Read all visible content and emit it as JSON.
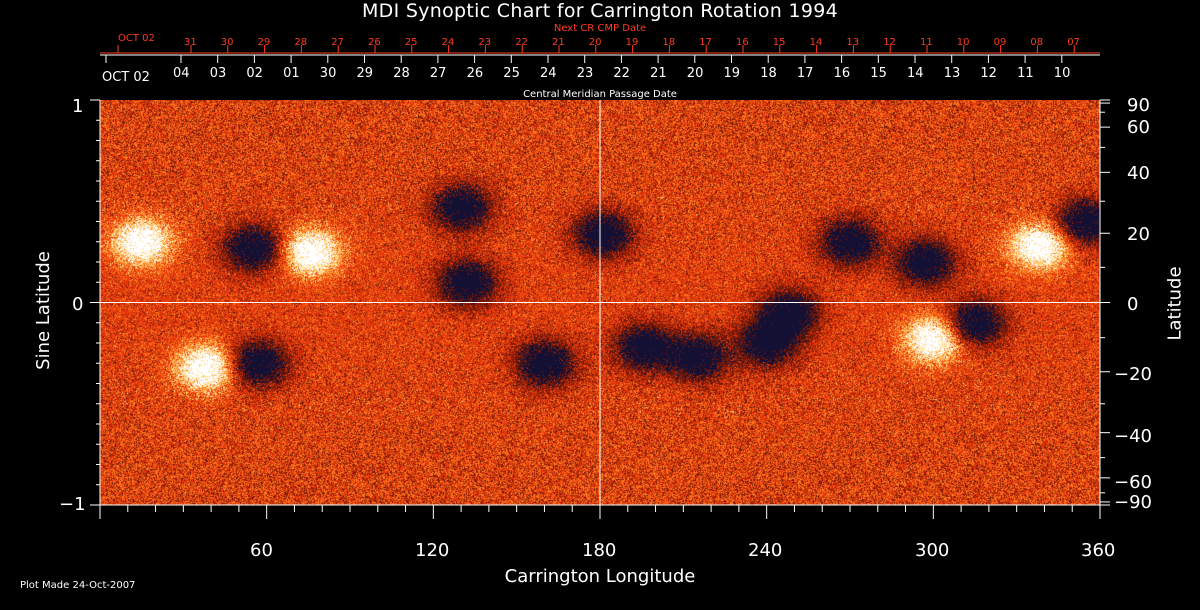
{
  "chart_data": {
    "type": "heatmap",
    "title": "MDI Synoptic Chart for Carrington Rotation 1994",
    "top_axis_red": {
      "label": "Next CR CMP Date",
      "start_label": "OCT 02",
      "ticks": [
        "31",
        "30",
        "29",
        "28",
        "27",
        "26",
        "25",
        "24",
        "23",
        "22",
        "21",
        "20",
        "19",
        "18",
        "17",
        "16",
        "15",
        "14",
        "13",
        "12",
        "11",
        "10",
        "09",
        "08",
        "07"
      ]
    },
    "top_axis_white": {
      "label": "Central Meridian Passage Date",
      "start_label": "OCT 02",
      "ticks": [
        "04",
        "03",
        "02",
        "01",
        "30",
        "29",
        "28",
        "27",
        "26",
        "25",
        "24",
        "23",
        "22",
        "21",
        "20",
        "19",
        "18",
        "17",
        "16",
        "15",
        "14",
        "13",
        "12",
        "11",
        "10"
      ]
    },
    "xlabel": "Carrington Longitude",
    "xlim": [
      0,
      360
    ],
    "xticks": [
      "60",
      "120",
      "180",
      "240",
      "300",
      "360"
    ],
    "ylabel": "Sine Latitude",
    "ylim": [
      -1,
      1
    ],
    "yticks": [
      "1",
      "0",
      "−1"
    ],
    "y2label": "Latitude",
    "y2ticks": [
      "90",
      "60",
      "40",
      "20",
      "0",
      "−20",
      "−40",
      "−60",
      "−90"
    ],
    "footer": "Plot Made 24-Oct-2007",
    "colormap": [
      "#141033",
      "#7a1a08",
      "#e2380c",
      "#ff7a1e",
      "#ffd27a",
      "#ffffff"
    ],
    "features": [
      {
        "lon": 15,
        "lat": 0.3,
        "polarity": "positive"
      },
      {
        "lon": 55,
        "lat": 0.27,
        "polarity": "negative"
      },
      {
        "lon": 76,
        "lat": 0.25,
        "polarity": "positive"
      },
      {
        "lon": 130,
        "lat": 0.47,
        "polarity": "negative"
      },
      {
        "lon": 132,
        "lat": 0.1,
        "polarity": "negative"
      },
      {
        "lon": 181,
        "lat": 0.34,
        "polarity": "negative"
      },
      {
        "lon": 38,
        "lat": -0.32,
        "polarity": "positive"
      },
      {
        "lon": 57,
        "lat": -0.3,
        "polarity": "negative"
      },
      {
        "lon": 160,
        "lat": -0.3,
        "polarity": "negative"
      },
      {
        "lon": 196,
        "lat": -0.22,
        "polarity": "negative"
      },
      {
        "lon": 215,
        "lat": -0.27,
        "polarity": "negative"
      },
      {
        "lon": 240,
        "lat": -0.2,
        "polarity": "negative"
      },
      {
        "lon": 248,
        "lat": -0.05,
        "polarity": "negative"
      },
      {
        "lon": 270,
        "lat": 0.3,
        "polarity": "negative"
      },
      {
        "lon": 297,
        "lat": 0.2,
        "polarity": "negative"
      },
      {
        "lon": 300,
        "lat": -0.18,
        "polarity": "positive"
      },
      {
        "lon": 315,
        "lat": -0.1,
        "polarity": "negative"
      },
      {
        "lon": 338,
        "lat": 0.28,
        "polarity": "positive"
      },
      {
        "lon": 355,
        "lat": 0.4,
        "polarity": "negative"
      }
    ]
  }
}
